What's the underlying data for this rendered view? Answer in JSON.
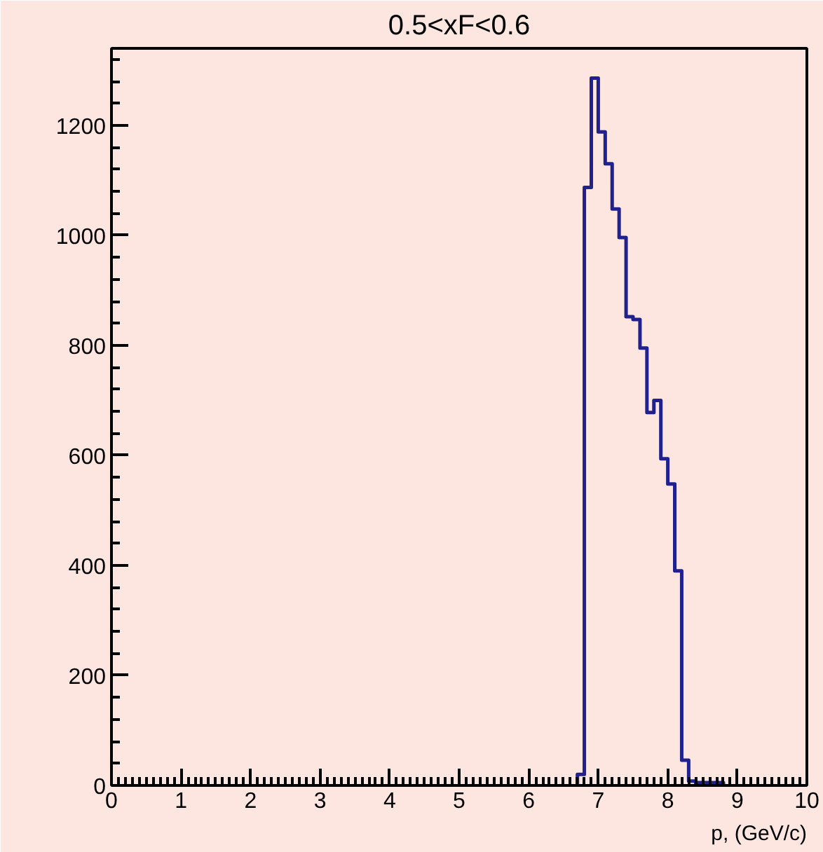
{
  "chart_data": {
    "type": "histogram",
    "title": "0.5<xF<0.6",
    "xlabel": "p, (GeV/c)",
    "bins": [
      6.7,
      6.8,
      6.9,
      7.0,
      7.1,
      7.2,
      7.3,
      7.4,
      7.5,
      7.6,
      7.7,
      7.8,
      7.9,
      8.0,
      8.1,
      8.2,
      8.3,
      8.4,
      8.5,
      8.6,
      8.7,
      8.8
    ],
    "values": [
      20,
      1087,
      1286,
      1188,
      1130,
      1048,
      996,
      852,
      847,
      795,
      678,
      700,
      594,
      548,
      390,
      46,
      8,
      5,
      5,
      5,
      5
    ],
    "color": "#20208f",
    "xlim": [
      0,
      10
    ],
    "xticks": [
      0,
      1,
      2,
      3,
      4,
      5,
      6,
      7,
      8,
      9,
      10
    ],
    "ylim": [
      0,
      1340
    ],
    "yticks": [
      0,
      200,
      400,
      600,
      800,
      1000,
      1200
    ],
    "grid": false
  }
}
